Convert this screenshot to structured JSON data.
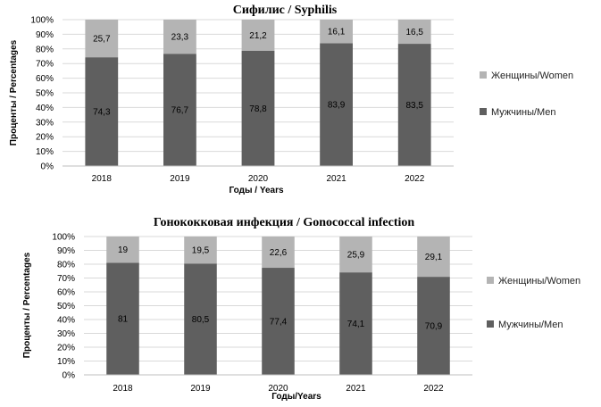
{
  "chart_data": [
    {
      "type": "bar",
      "stacked": true,
      "title": "Сифилис / Syphilis",
      "xlabel": "Годы / Years",
      "ylabel": "Проценты / Percentages",
      "categories": [
        "2018",
        "2019",
        "2020",
        "2021",
        "2022"
      ],
      "yticks": [
        "0%",
        "10%",
        "20%",
        "30%",
        "40%",
        "50%",
        "60%",
        "70%",
        "80%",
        "90%",
        "100%"
      ],
      "ylim": [
        0,
        100
      ],
      "series": [
        {
          "name": "Мужчины/Men",
          "values": [
            74.3,
            76.7,
            78.8,
            83.9,
            83.5
          ],
          "labels": [
            "74,3",
            "76,7",
            "78,8",
            "83,9",
            "83,5"
          ],
          "color": "#5f5f5f"
        },
        {
          "name": "Женщины/Women",
          "values": [
            25.7,
            23.3,
            21.2,
            16.1,
            16.5
          ],
          "labels": [
            "25,7",
            "23,3",
            "21,2",
            "16,1",
            "16,5"
          ],
          "color": "#b4b4b4"
        }
      ],
      "legend": [
        "Женщины/Women",
        "Мужчины/Men"
      ],
      "legend_position": "right",
      "grid": true
    },
    {
      "type": "bar",
      "stacked": true,
      "title": "Гонококковая инфекция / Gonococcal infection",
      "xlabel": "Годы/Years",
      "ylabel": "Проценты / Percentages",
      "categories": [
        "2018",
        "2019",
        "2020",
        "2021",
        "2022"
      ],
      "yticks": [
        "0%",
        "10%",
        "20%",
        "30%",
        "40%",
        "50%",
        "60%",
        "70%",
        "80%",
        "90%",
        "100%"
      ],
      "ylim": [
        0,
        100
      ],
      "series": [
        {
          "name": "Мужчины/Men",
          "values": [
            81,
            80.5,
            77.4,
            74.1,
            70.9
          ],
          "labels": [
            "81",
            "80,5",
            "77,4",
            "74,1",
            "70,9"
          ],
          "color": "#5f5f5f"
        },
        {
          "name": "Женщины/Women",
          "values": [
            19,
            19.5,
            22.6,
            25.9,
            29.1
          ],
          "labels": [
            "19",
            "19,5",
            "22,6",
            "25,9",
            "29,1"
          ],
          "color": "#b4b4b4"
        }
      ],
      "legend": [
        "Женщины/Women",
        "Мужчины/Men"
      ],
      "legend_position": "right",
      "grid": true
    }
  ]
}
